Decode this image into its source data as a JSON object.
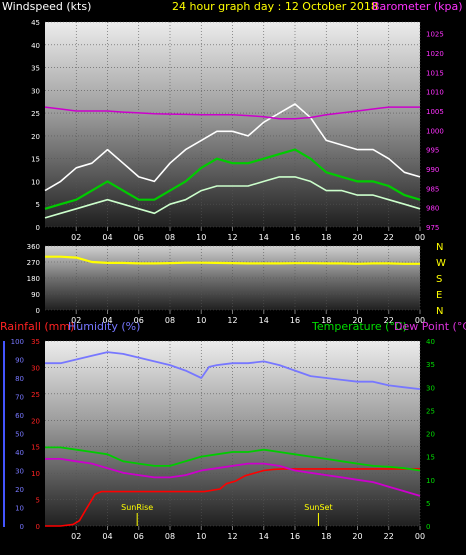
{
  "chart_data": [
    {
      "type": "line",
      "title": "24 hour graph day : 12 October 2018",
      "left_axis_label": "Windspeed (kts)",
      "right_axis_label": "Barometer (kpa)",
      "x_tick_labels": [
        "02",
        "04",
        "06",
        "08",
        "10",
        "12",
        "14",
        "16",
        "18",
        "20",
        "22",
        "00"
      ],
      "x_range": [
        0,
        24
      ],
      "y_left_ticks": [
        "0",
        "5",
        "10",
        "15",
        "20",
        "25",
        "30",
        "35",
        "40",
        "45"
      ],
      "y_left_range": [
        0,
        45
      ],
      "y_right_ticks": [
        "975",
        "980",
        "985",
        "990",
        "995",
        "1000",
        "1005",
        "1010",
        "1015",
        "1020",
        "1025"
      ],
      "y_right_range": [
        975,
        1028
      ],
      "grid": true,
      "series": [
        {
          "role": "gust",
          "color": "#ffffff",
          "x": [
            0,
            1,
            2,
            3,
            4,
            5,
            6,
            7,
            8,
            9,
            10,
            11,
            12,
            13,
            14,
            15,
            16,
            17,
            18,
            19,
            20,
            21,
            22,
            23,
            24
          ],
          "values": [
            8,
            10,
            13,
            14,
            17,
            14,
            11,
            10,
            14,
            17,
            19,
            21,
            21,
            20,
            23,
            25,
            27,
            24,
            19,
            18,
            17,
            17,
            15,
            12,
            11
          ]
        },
        {
          "role": "average",
          "color": "#00cc00",
          "x": [
            0,
            1,
            2,
            3,
            4,
            5,
            6,
            7,
            8,
            9,
            10,
            11,
            12,
            13,
            14,
            15,
            16,
            17,
            18,
            19,
            20,
            21,
            22,
            23,
            24
          ],
          "values": [
            4,
            5,
            6,
            8,
            10,
            8,
            6,
            6,
            8,
            10,
            13,
            15,
            14,
            14,
            15,
            16,
            17,
            15,
            12,
            11,
            10,
            10,
            9,
            7,
            6
          ]
        },
        {
          "role": "lull",
          "color": "#ccffcc",
          "x": [
            0,
            1,
            2,
            3,
            4,
            5,
            6,
            7,
            8,
            9,
            10,
            11,
            12,
            13,
            14,
            15,
            16,
            17,
            18,
            19,
            20,
            21,
            22,
            23,
            24
          ],
          "values": [
            2,
            3,
            4,
            5,
            6,
            5,
            4,
            3,
            5,
            6,
            8,
            9,
            9,
            9,
            10,
            11,
            11,
            10,
            8,
            8,
            7,
            7,
            6,
            5,
            4
          ]
        },
        {
          "role": "barometer",
          "color": "#cc00cc",
          "axis": "right",
          "x": [
            0,
            1,
            2,
            3,
            4,
            5,
            6,
            7,
            8,
            9,
            10,
            11,
            12,
            13,
            14,
            15,
            16,
            17,
            18,
            19,
            20,
            21,
            22,
            23,
            24
          ],
          "values": [
            1006,
            1005.5,
            1005,
            1005,
            1005,
            1004.7,
            1004.5,
            1004.3,
            1004.2,
            1004.1,
            1004,
            1004,
            1004,
            1003.8,
            1003.5,
            1003,
            1003,
            1003.3,
            1004,
            1004.5,
            1005,
            1005.5,
            1006,
            1006,
            1006
          ]
        }
      ]
    },
    {
      "type": "line",
      "x_tick_labels": [
        "02",
        "04",
        "06",
        "08",
        "10",
        "12",
        "14",
        "16",
        "18",
        "20",
        "22",
        "00"
      ],
      "x_range": [
        0,
        24
      ],
      "y_left_ticks": [
        "0",
        "90",
        "180",
        "270",
        "360"
      ],
      "y_range": [
        0,
        360
      ],
      "y_right_labels": [
        "N",
        "W",
        "S",
        "E",
        "N"
      ],
      "grid": true,
      "series": [
        {
          "role": "wind-direction",
          "color": "#ffff00",
          "x": [
            0,
            1,
            2,
            3,
            4,
            5,
            6,
            7,
            8,
            9,
            10,
            11,
            12,
            13,
            14,
            15,
            16,
            17,
            18,
            19,
            20,
            21,
            22,
            23,
            24
          ],
          "values": [
            300,
            300,
            295,
            270,
            265,
            265,
            262,
            262,
            264,
            266,
            266,
            265,
            264,
            262,
            262,
            262,
            263,
            263,
            262,
            262,
            260,
            262,
            262,
            260,
            260
          ]
        }
      ]
    },
    {
      "type": "line",
      "legend": [
        {
          "text": "Rainfall (mm)",
          "color": "#ff0000"
        },
        {
          "text": "Humidity (%)",
          "color": "#7777ff"
        },
        {
          "text": "Temperature (°C)",
          "color": "#00cc00"
        },
        {
          "text": "Dew Point (°C)",
          "color": "#cc00cc"
        }
      ],
      "x_tick_labels": [
        "02",
        "04",
        "06",
        "08",
        "10",
        "12",
        "14",
        "16",
        "18",
        "20",
        "22",
        "00"
      ],
      "x_range": [
        0,
        24
      ],
      "rain_ticks": [
        "0",
        "5",
        "10",
        "15",
        "20",
        "25",
        "30",
        "35"
      ],
      "rain_range": [
        0,
        35
      ],
      "humidity_ticks": [
        "0",
        "10",
        "20",
        "30",
        "40",
        "50",
        "60",
        "70",
        "80",
        "90",
        "100"
      ],
      "humidity_range": [
        0,
        100
      ],
      "temp_ticks": [
        "0",
        "5",
        "10",
        "15",
        "20",
        "25",
        "30",
        "35",
        "40"
      ],
      "temp_range": [
        0,
        40
      ],
      "annotations": [
        {
          "text": "SunRise",
          "x": 5.9
        },
        {
          "text": "SunSet",
          "x": 17.5
        }
      ],
      "grid": true,
      "series": [
        {
          "role": "rainfall",
          "color": "#ff0000",
          "axis": "rain",
          "x": [
            0,
            1,
            1.8,
            2.2,
            2.6,
            3.0,
            3.2,
            3.6,
            10.2,
            11.2,
            11.6,
            12.2,
            12.8,
            13.4,
            14.0,
            14.6,
            15.2,
            24.0
          ],
          "values": [
            0,
            0,
            0.3,
            1,
            3,
            5,
            6,
            6.5,
            6.5,
            7,
            8,
            8.5,
            9.5,
            10,
            10.5,
            10.7,
            10.8,
            10.8
          ]
        },
        {
          "role": "humidity",
          "color": "#7777ff",
          "axis": "humidity",
          "x": [
            0,
            1,
            2,
            3,
            4,
            5,
            6,
            7,
            8,
            9,
            10,
            10.5,
            11,
            12,
            13,
            14,
            15,
            16,
            17,
            18,
            19,
            20,
            21,
            22,
            23,
            24
          ],
          "values": [
            88,
            88,
            90,
            92,
            94,
            93,
            91,
            89,
            87,
            84,
            80,
            86,
            87,
            88,
            88,
            89,
            87,
            84,
            81,
            80,
            79,
            78,
            78,
            76,
            75,
            74
          ]
        },
        {
          "role": "temperature",
          "color": "#00cc00",
          "axis": "temp",
          "x": [
            0,
            1,
            2,
            3,
            4,
            5,
            6,
            7,
            8,
            9,
            10,
            11,
            12,
            13,
            14,
            15,
            16,
            17,
            18,
            19,
            20,
            21,
            22,
            23,
            24
          ],
          "values": [
            17,
            17,
            16.5,
            16,
            15.5,
            14,
            13.5,
            13,
            13,
            14,
            15,
            15.5,
            16,
            16,
            16.5,
            16,
            15.5,
            15,
            14.5,
            14,
            13.5,
            13,
            12.8,
            12.5,
            12
          ]
        },
        {
          "role": "dew-point",
          "color": "#cc00cc",
          "axis": "temp",
          "x": [
            0,
            1,
            2,
            3,
            4,
            5,
            6,
            7,
            8,
            9,
            10,
            11,
            12,
            13,
            14,
            15,
            16,
            17,
            18,
            19,
            20,
            21,
            22,
            23,
            24
          ],
          "values": [
            14.5,
            14.5,
            14,
            13.5,
            12.5,
            11.5,
            11,
            10.5,
            10.5,
            11,
            12,
            12.5,
            13,
            13.5,
            13.5,
            13,
            12,
            11.5,
            11,
            10.5,
            10,
            9.5,
            8.5,
            7.5,
            6.5
          ]
        }
      ]
    }
  ]
}
